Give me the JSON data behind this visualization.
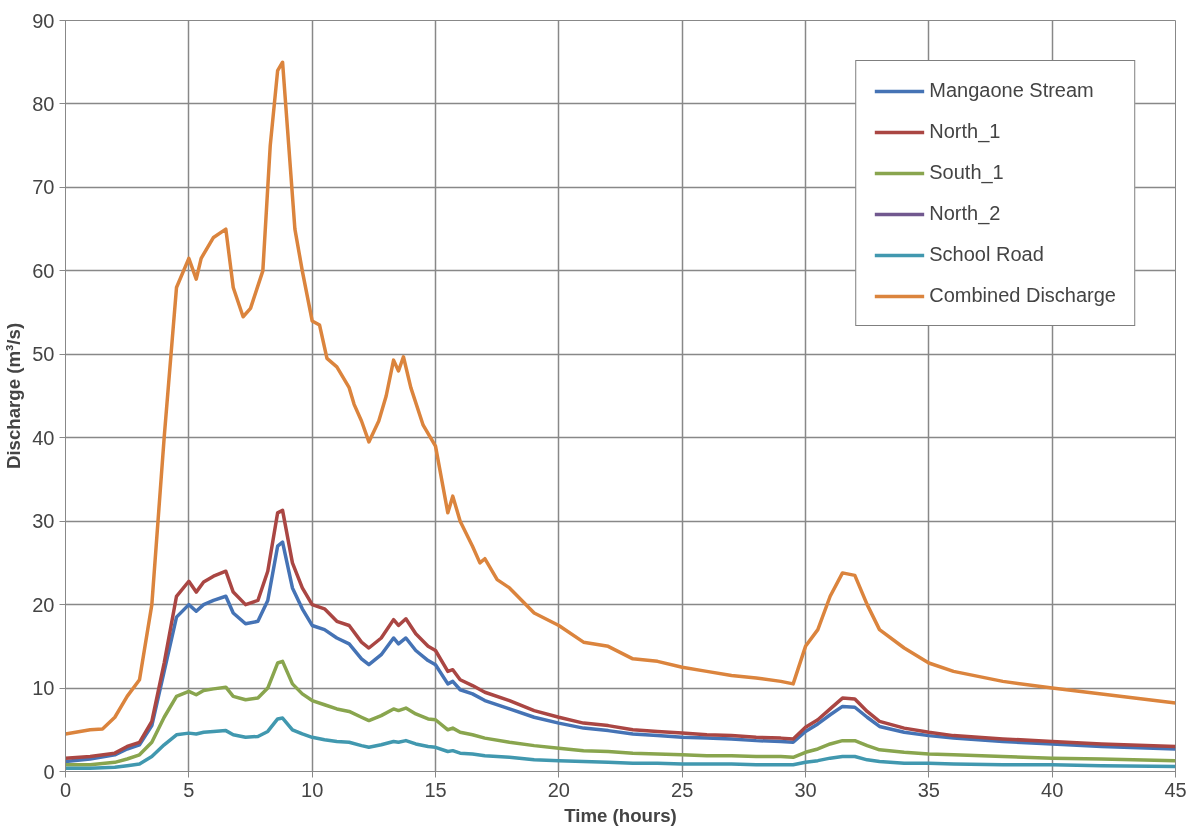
{
  "chart_data": {
    "type": "line",
    "xlabel": "Time (hours)",
    "ylabel": "Discharge (m³/s)",
    "x": [
      0,
      1,
      2,
      2.5,
      3,
      3.5,
      4,
      4.5,
      5,
      5.3,
      5.6,
      6,
      6.5,
      6.8,
      7.3,
      7.8,
      8.2,
      8.6,
      8.8,
      9.2,
      9.6,
      10,
      10.5,
      11,
      11.5,
      12,
      12.3,
      12.8,
      13.3,
      13.5,
      13.8,
      14.2,
      14.7,
      15,
      15.5,
      15.7,
      16,
      16.5,
      17,
      18,
      19,
      20,
      21,
      22,
      23,
      24,
      25,
      26,
      27,
      28,
      29,
      29.5,
      30,
      30.5,
      31,
      31.5,
      32,
      32.5,
      33,
      34,
      35,
      36,
      38,
      40,
      42,
      45
    ],
    "xlim": [
      0,
      45
    ],
    "xticks": [
      0,
      5,
      10,
      15,
      20,
      25,
      30,
      35,
      40,
      45
    ],
    "ylim": [
      0,
      90
    ],
    "yticks": [
      0,
      10,
      20,
      30,
      40,
      50,
      60,
      70,
      80,
      90
    ],
    "grid": true,
    "legend": "top right",
    "line_style": "solid",
    "marker": "none",
    "series": [
      {
        "name": "Mangaone Stream",
        "color": "#4573b5",
        "values": [
          1.2,
          1.5,
          2,
          2.7,
          3.2,
          5.5,
          12,
          18.5,
          20,
          19.2,
          20,
          20.5,
          21,
          19,
          17.7,
          18,
          20.5,
          27,
          27.5,
          22,
          19.5,
          17.5,
          17,
          16,
          15.3,
          13.5,
          12.8,
          14,
          16,
          15.3,
          16,
          14.5,
          13.3,
          12.8,
          10.5,
          10.8,
          9.8,
          9.3,
          8.5,
          7.5,
          6.5,
          5.8,
          5.2,
          4.9,
          4.5,
          4.3,
          4.1,
          4,
          3.9,
          3.7,
          3.6,
          3.5,
          4.8,
          5.7,
          6.8,
          7.8,
          7.7,
          6.5,
          5.4,
          4.7,
          4.3,
          4,
          3.6,
          3.3,
          3.0,
          2.7
        ]
      },
      {
        "name": "North_1",
        "color": "#aa4643",
        "values": [
          1.6,
          1.8,
          2.2,
          3,
          3.5,
          6,
          13,
          21,
          22.8,
          21.5,
          22.7,
          23.4,
          24,
          21.5,
          20,
          20.5,
          24,
          31,
          31.3,
          25,
          22,
          20,
          19.5,
          18,
          17.5,
          15.5,
          14.8,
          16,
          18.2,
          17.5,
          18.3,
          16.5,
          15,
          14.5,
          12,
          12.2,
          11,
          10.3,
          9.5,
          8.5,
          7.3,
          6.5,
          5.8,
          5.5,
          5,
          4.8,
          4.6,
          4.4,
          4.3,
          4.1,
          4,
          3.9,
          5.3,
          6.2,
          7.5,
          8.8,
          8.7,
          7.2,
          6,
          5.2,
          4.7,
          4.3,
          3.9,
          3.6,
          3.3,
          3.0
        ]
      },
      {
        "name": "South_1",
        "color": "#89a54e",
        "values": [
          0.8,
          0.8,
          1.1,
          1.5,
          2,
          3.5,
          6.5,
          9,
          9.6,
          9.2,
          9.7,
          9.9,
          10.1,
          9,
          8.6,
          8.8,
          10,
          13,
          13.2,
          10.5,
          9.3,
          8.5,
          8,
          7.5,
          7.2,
          6.5,
          6.1,
          6.7,
          7.5,
          7.3,
          7.6,
          6.9,
          6.3,
          6.2,
          5,
          5.2,
          4.7,
          4.4,
          4,
          3.5,
          3.1,
          2.8,
          2.5,
          2.4,
          2.2,
          2.1,
          2.0,
          1.9,
          1.9,
          1.8,
          1.8,
          1.7,
          2.3,
          2.7,
          3.3,
          3.7,
          3.7,
          3.1,
          2.6,
          2.3,
          2.1,
          2,
          1.8,
          1.6,
          1.5,
          1.3
        ]
      },
      {
        "name": "North_2",
        "color": "#71588f",
        "values": [
          null,
          null,
          null,
          null,
          null,
          null,
          null,
          null,
          null,
          null,
          null,
          null,
          null,
          null,
          null,
          null,
          null,
          null,
          null,
          null,
          null,
          null,
          null,
          null,
          null,
          null,
          null,
          null,
          null,
          null,
          null,
          null,
          null,
          null,
          null,
          null,
          null,
          null,
          null,
          null,
          null,
          null,
          null,
          null,
          null,
          null,
          null,
          null,
          null,
          null,
          null,
          null,
          null,
          null,
          null,
          null,
          null,
          null,
          null,
          null,
          null,
          null,
          null,
          null,
          null,
          null
        ]
      },
      {
        "name": "School Road",
        "color": "#4198af",
        "values": [
          0.4,
          0.4,
          0.5,
          0.7,
          0.9,
          1.8,
          3.2,
          4.4,
          4.6,
          4.5,
          4.7,
          4.8,
          4.9,
          4.4,
          4.1,
          4.2,
          4.8,
          6.3,
          6.4,
          5,
          4.5,
          4.1,
          3.8,
          3.6,
          3.5,
          3.1,
          2.9,
          3.2,
          3.6,
          3.5,
          3.7,
          3.3,
          3,
          2.9,
          2.4,
          2.5,
          2.2,
          2.1,
          1.9,
          1.7,
          1.4,
          1.3,
          1.2,
          1.1,
          1.0,
          1.0,
          0.9,
          0.9,
          0.9,
          0.8,
          0.8,
          0.8,
          1.1,
          1.3,
          1.6,
          1.8,
          1.8,
          1.4,
          1.2,
          1.0,
          1.0,
          0.9,
          0.8,
          0.8,
          0.7,
          0.6
        ]
      },
      {
        "name": "Combined Discharge",
        "color": "#db843d",
        "x": [
          0,
          1,
          1.5,
          2,
          2.5,
          3,
          3.5,
          4,
          4.5,
          5,
          5.3,
          5.5,
          6,
          6.5,
          6.8,
          7.2,
          7.5,
          8,
          8.3,
          8.6,
          8.8,
          9.0,
          9.3,
          9.6,
          10,
          10.3,
          10.6,
          11,
          11.5,
          11.7,
          12,
          12.3,
          12.7,
          13.0,
          13.3,
          13.5,
          13.7,
          14.0,
          14.5,
          15,
          15.5,
          15.7,
          16,
          16.5,
          16.8,
          17,
          17.5,
          18,
          19,
          20,
          21,
          22,
          23,
          24,
          25,
          26,
          27,
          28,
          29,
          29.5,
          30,
          30.5,
          31,
          31.5,
          32,
          32.5,
          33,
          34,
          35,
          36,
          38,
          40,
          42,
          45
        ],
        "values": [
          4.5,
          5,
          5.1,
          6.5,
          9,
          11,
          20,
          40,
          58,
          61.5,
          59,
          61.5,
          64,
          65,
          58,
          54.5,
          55.5,
          60,
          75,
          84,
          85,
          77,
          65,
          60,
          54,
          53.5,
          49.5,
          48.5,
          46,
          44,
          42,
          39.5,
          42,
          45,
          49.3,
          48,
          49.7,
          46,
          41.5,
          39,
          31,
          33,
          30,
          27,
          25,
          25.5,
          23,
          22,
          19,
          17.5,
          15.5,
          15,
          13.5,
          13.2,
          12.5,
          12,
          11.5,
          11.2,
          10.8,
          10.5,
          15,
          17,
          21,
          23.8,
          23.5,
          20,
          17,
          14.8,
          13,
          12,
          10.8,
          10,
          9.3,
          8.2
        ]
      }
    ]
  }
}
